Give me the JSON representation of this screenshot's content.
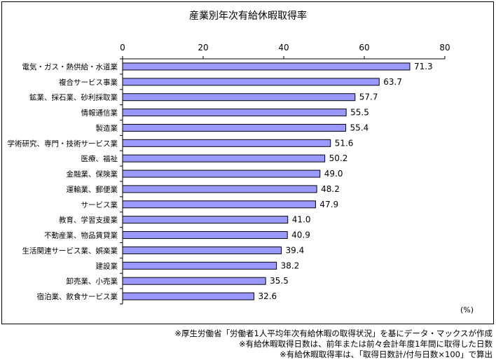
{
  "chart_data": {
    "type": "bar",
    "orientation": "horizontal",
    "title": "産業別年次有給休暇取得率",
    "categories": [
      "電気・ガス・熱供給・水道業",
      "複合サービス事業",
      "鉱業、採石業、砂利採取業",
      "情報通信業",
      "製造業",
      "学術研究、専門・技術サービス業",
      "医療、福祉",
      "金融業、保険業",
      "運輸業、郵便業",
      "サービス業",
      "教育、学習支援業",
      "不動産業、物品賃貸業",
      "生活関連サービス業、娯楽業",
      "建設業",
      "卸売業、小売業",
      "宿泊業、飲食サービス業"
    ],
    "values": [
      71.3,
      63.7,
      57.7,
      55.5,
      55.4,
      51.6,
      50.2,
      49.0,
      48.2,
      47.9,
      41.0,
      40.9,
      39.4,
      38.2,
      35.5,
      32.6
    ],
    "value_labels": [
      "71.3",
      "63.7",
      "57.7",
      "55.5",
      "55.4",
      "51.6",
      "50.2",
      "49.0",
      "48.2",
      "47.9",
      "41.0",
      "40.9",
      "39.4",
      "38.2",
      "35.5",
      "32.6"
    ],
    "xlim": [
      0,
      80
    ],
    "xticks": [
      "0",
      "20",
      "40",
      "60",
      "80"
    ],
    "axis_position": "top",
    "unit": "(%)",
    "grid": false,
    "bar_color": "#9999ff"
  },
  "notes": [
    "※厚生労働省「労働者1人平均年次有給休暇の取得状況」を基にデータ・マックスが作成",
    "※有給休暇取得日数は、前年または前々会計年度1年間に取得した日数",
    "※有給休暇取得率は、「取得日数計/付与日数×100」で算出"
  ]
}
